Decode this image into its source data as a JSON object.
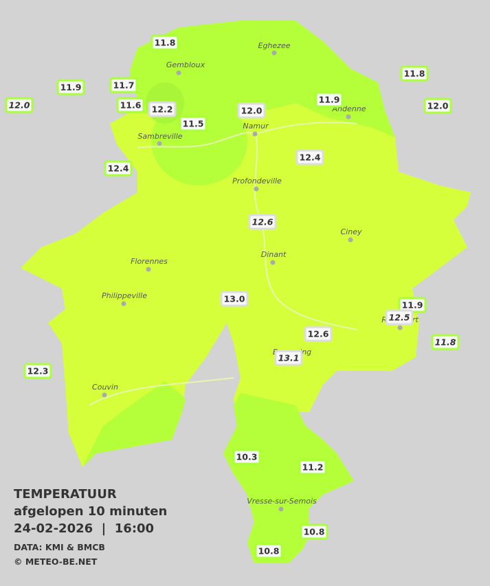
{
  "legend": {
    "title": "TEMPERATUUR",
    "subtitle": "afgelopen 10 minuten",
    "datetime": "24-02-2026  |  16:00",
    "source": "DATA: KMI & BMCB",
    "copyright": "© METEO-BE.NET"
  },
  "towns": [
    {
      "name": "Eghezee"
    },
    {
      "name": "Gembloux"
    },
    {
      "name": "Andenne"
    },
    {
      "name": "Namur"
    },
    {
      "name": "Sambreville"
    },
    {
      "name": "Profondeville"
    },
    {
      "name": "Ciney"
    },
    {
      "name": "Dinant"
    },
    {
      "name": "Florennes"
    },
    {
      "name": "Philippeville"
    },
    {
      "name": "Couvin"
    },
    {
      "name": "Beauraing"
    },
    {
      "name": "Rochefort"
    },
    {
      "name": "Vresse-sur-Semois"
    }
  ],
  "stations": [
    {
      "label": "11.8"
    },
    {
      "label": "11.9"
    },
    {
      "label": "11.7"
    },
    {
      "label": "12.0",
      "italic": true
    },
    {
      "label": "11.6"
    },
    {
      "label": "12.2"
    },
    {
      "label": "11.5"
    },
    {
      "label": "12.0"
    },
    {
      "label": "11.9"
    },
    {
      "label": "11.8"
    },
    {
      "label": "12.0"
    },
    {
      "label": "12.4"
    },
    {
      "label": "12.4"
    },
    {
      "label": "12.6",
      "italic": true
    },
    {
      "label": "13.0"
    },
    {
      "label": "11.9"
    },
    {
      "label": "12.5",
      "italic": true
    },
    {
      "label": "11.8",
      "italic": true
    },
    {
      "label": "12.6"
    },
    {
      "label": "13.1",
      "italic": true
    },
    {
      "label": "12.3"
    },
    {
      "label": "10.3"
    },
    {
      "label": "11.2"
    },
    {
      "label": "10.8"
    },
    {
      "label": "10.8"
    }
  ]
}
